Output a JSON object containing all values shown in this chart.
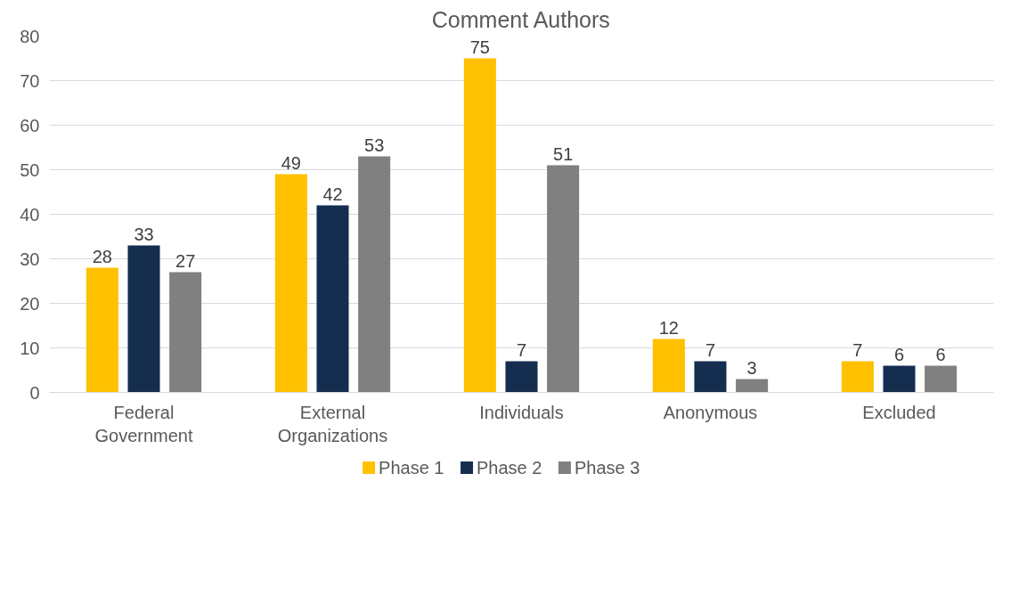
{
  "chart_data": {
    "type": "bar",
    "title": "Comment Authors",
    "categories": [
      "Federal Government",
      "External Organizations",
      "Individuals",
      "Anonymous",
      "Excluded"
    ],
    "series": [
      {
        "name": "Phase 1",
        "color": "#ffc000",
        "values": [
          28,
          49,
          75,
          12,
          7
        ]
      },
      {
        "name": "Phase 2",
        "color": "#152d4f",
        "values": [
          33,
          42,
          7,
          7,
          6
        ]
      },
      {
        "name": "Phase 3",
        "color": "#808080",
        "values": [
          27,
          53,
          51,
          3,
          6
        ]
      }
    ],
    "ylim": [
      0,
      80
    ],
    "yticks": [
      0,
      10,
      20,
      30,
      40,
      50,
      60,
      70,
      80
    ],
    "grid": "y",
    "legend": "bottom",
    "data_labels": true
  }
}
